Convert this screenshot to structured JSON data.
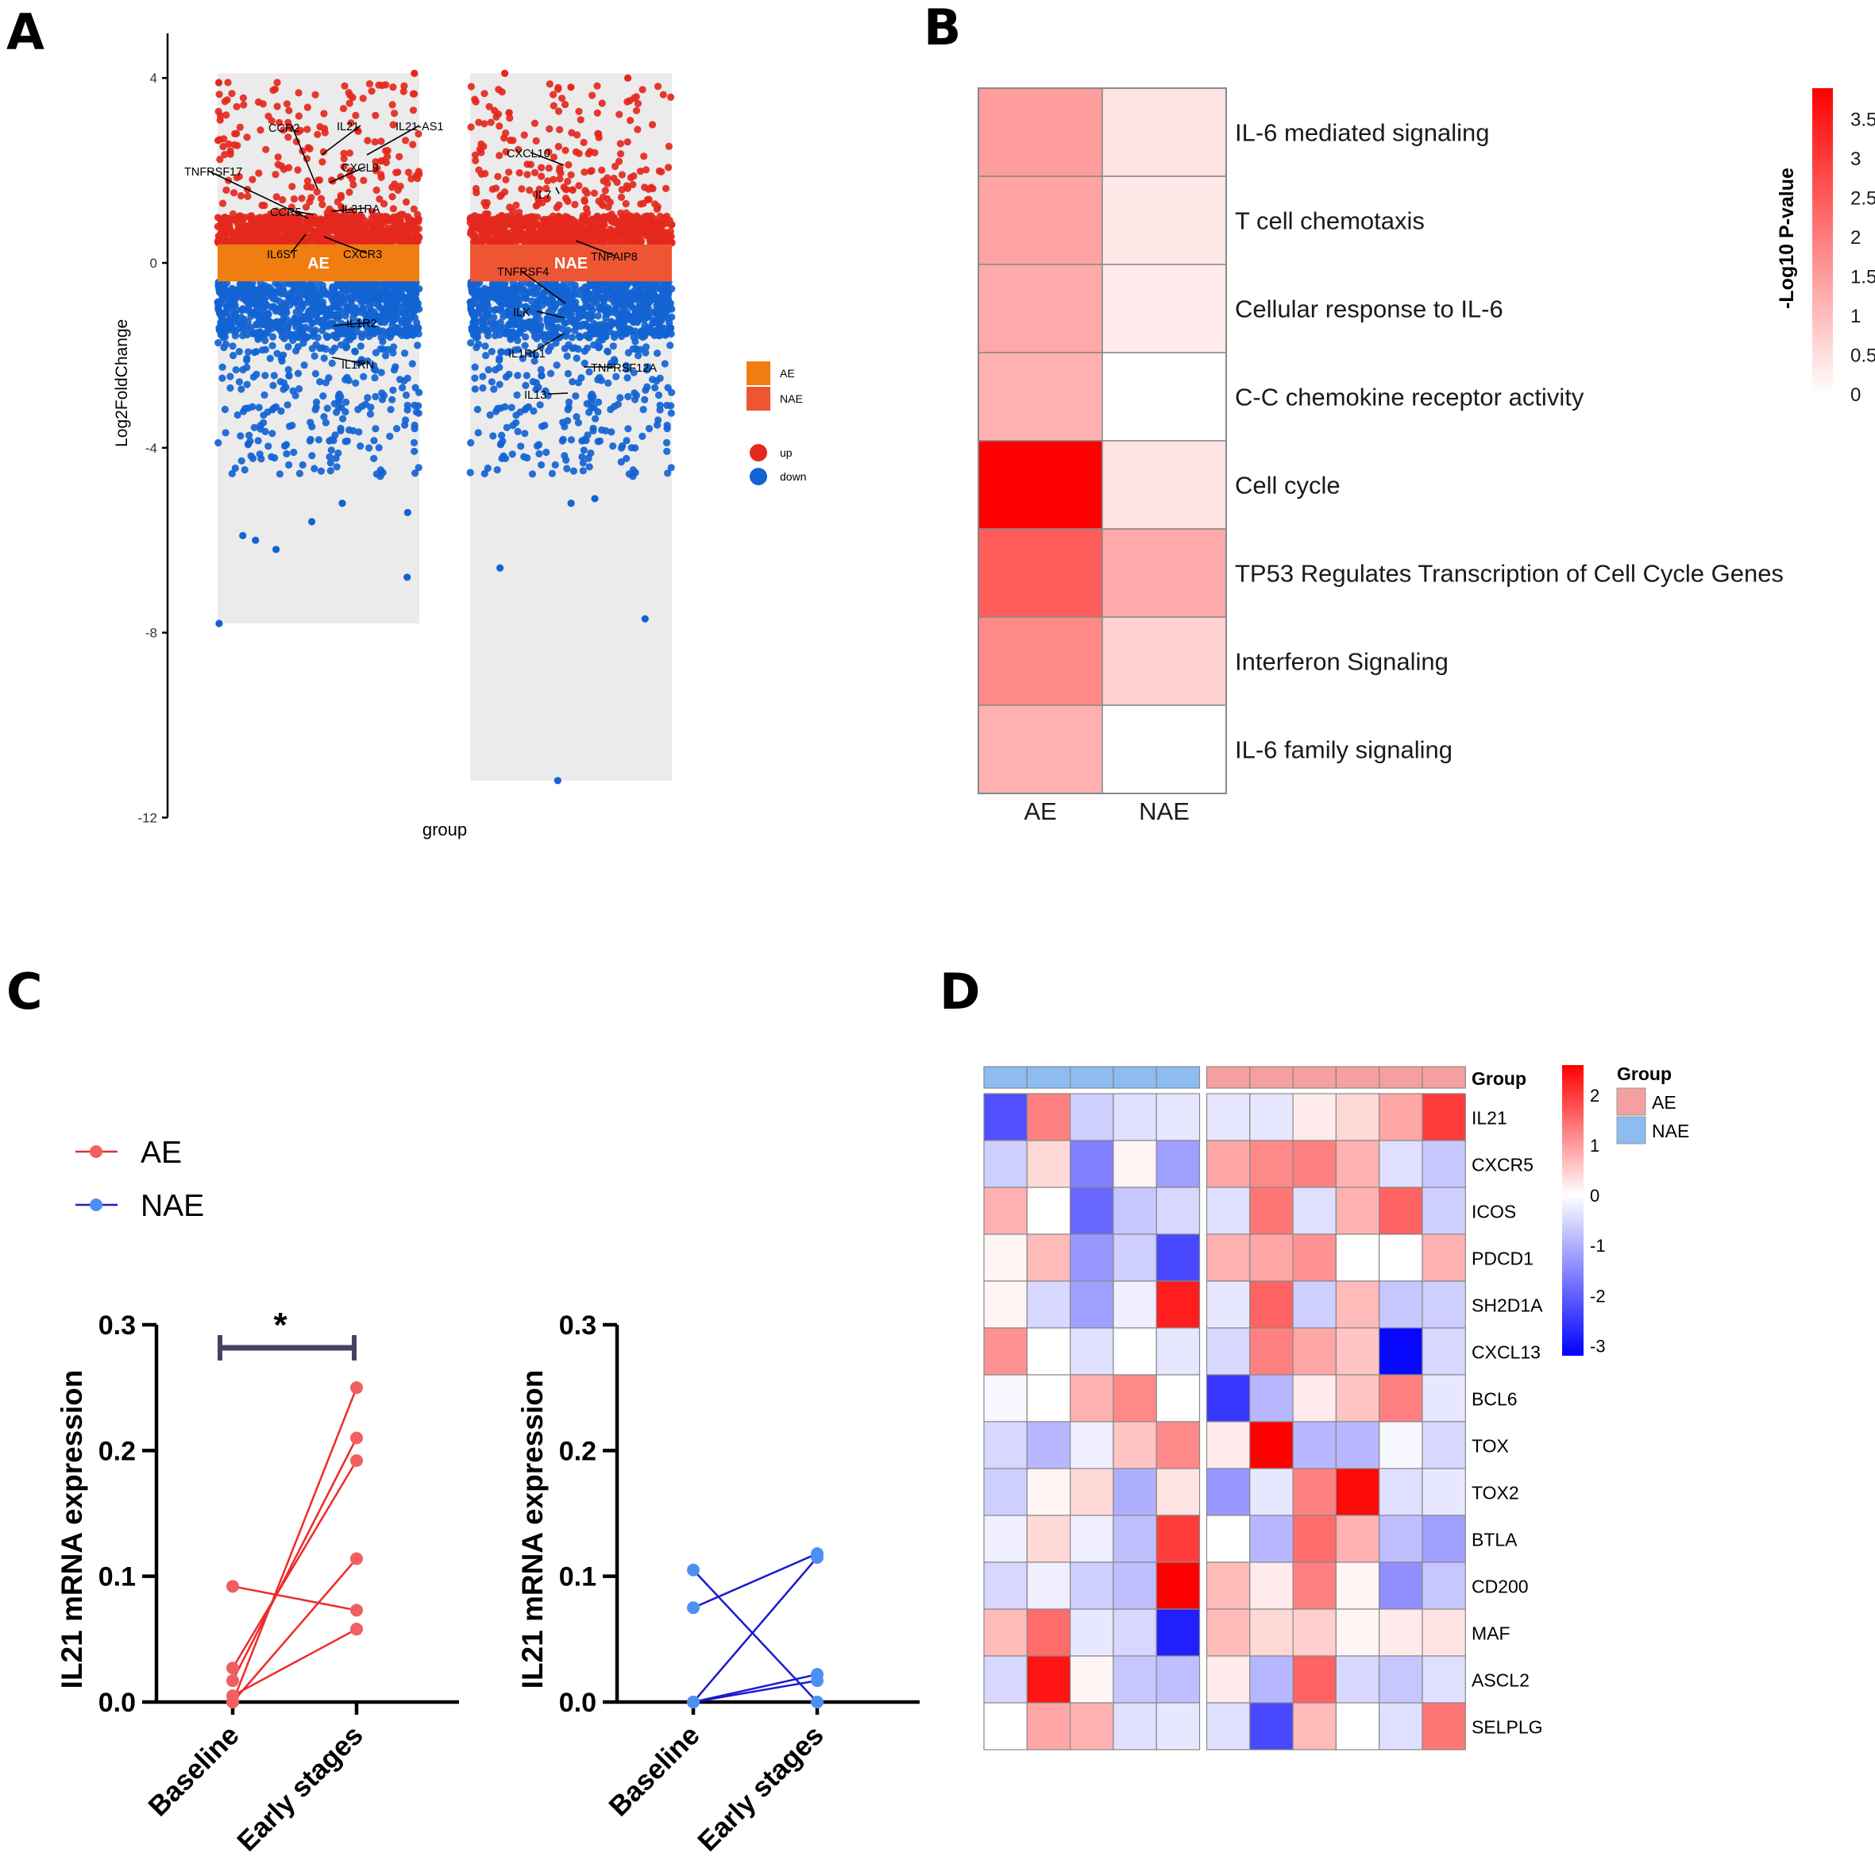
{
  "panels": {
    "a": {
      "letter": "A"
    },
    "b": {
      "letter": "B"
    },
    "c": {
      "letter": "C"
    },
    "d": {
      "letter": "D"
    }
  },
  "colors": {
    "up": "#e4281e",
    "down": "#1263d3",
    "ae_band": "#f07d10",
    "nae_band": "#ee5533",
    "panel_bg": "#ebebeb",
    "ae_line": "#ee2b2b",
    "nae_line": "#1a1ad0",
    "ae_point": "#f06060",
    "nae_point": "#4d90f2",
    "bracket": "#44445e",
    "heat_low": "#ffffff",
    "heat_high": "#ff0000",
    "zlow": "#0000ff",
    "zmid": "#ffffff",
    "zhigh": "#ff0000",
    "group_ae": "#f4a0a0",
    "group_nae": "#8cbcf0"
  },
  "chart_data": [
    {
      "id": "A",
      "type": "scatter",
      "subtype": "manhattan-style jittered volcano",
      "xlabel": "group",
      "ylabel": "Log2FoldChange",
      "ylim": [
        -12,
        4.5
      ],
      "yticks": [
        4,
        0,
        -4,
        -8,
        -12
      ],
      "groups": [
        {
          "name": "AE",
          "band_label": "AE",
          "y_max": 4.1,
          "y_min": -7.8,
          "up_min": 0.4,
          "down_max": -0.4
        },
        {
          "name": "NAE",
          "band_label": "NAE",
          "y_max": 4.1,
          "y_min": -11.2,
          "up_min": 0.4,
          "down_max": -0.4
        }
      ],
      "legend": {
        "group_items": [
          "AE",
          "NAE"
        ],
        "direction_items": [
          "up",
          "down"
        ]
      },
      "gene_labels": [
        {
          "gene": "IL21-AS1",
          "group": "AE",
          "log2fc": 1.5
        },
        {
          "gene": "IL21",
          "group": "AE",
          "log2fc": 2.3
        },
        {
          "gene": "CCR2",
          "group": "AE",
          "log2fc": 1.6
        },
        {
          "gene": "TNFRSF17",
          "group": "AE",
          "log2fc": 1.6
        },
        {
          "gene": "CXCL9",
          "group": "AE",
          "log2fc": 1.8
        },
        {
          "gene": "CCR5",
          "group": "AE",
          "log2fc": 0.9
        },
        {
          "gene": "IL31RA",
          "group": "AE",
          "log2fc": 1.0
        },
        {
          "gene": "IL6ST",
          "group": "AE",
          "log2fc": 0.6
        },
        {
          "gene": "CXCR3",
          "group": "AE",
          "log2fc": 0.5
        },
        {
          "gene": "IL1R2",
          "group": "AE",
          "log2fc": -1.3
        },
        {
          "gene": "IL1RN",
          "group": "AE",
          "log2fc": -2.2
        },
        {
          "gene": "CXCL10",
          "group": "NAE",
          "log2fc": 2.1
        },
        {
          "gene": "IL7",
          "group": "NAE",
          "log2fc": 1.3
        },
        {
          "gene": "TNFAIP8",
          "group": "NAE",
          "log2fc": 0.4
        },
        {
          "gene": "TNFRSF4",
          "group": "NAE",
          "log2fc": -1.0
        },
        {
          "gene": "ILK",
          "group": "NAE",
          "log2fc": -1.3
        },
        {
          "gene": "IL1RL1",
          "group": "NAE",
          "log2fc": -1.6
        },
        {
          "gene": "TNFRSF12A",
          "group": "NAE",
          "log2fc": -2.4
        },
        {
          "gene": "IL13",
          "group": "NAE",
          "log2fc": -2.7
        }
      ]
    },
    {
      "id": "B",
      "type": "heatmap",
      "rows": [
        "IL-6 mediated signaling",
        "T cell chemotaxis",
        "Cellular response to IL-6",
        "C-C chemokine receptor activity",
        "Cell cycle",
        "TP53 Regulates Transcription of Cell Cycle Genes",
        "Interferon Signaling",
        "IL-6 family signaling"
      ],
      "columns": [
        "AE",
        "NAE"
      ],
      "values": [
        [
          1.5,
          0.45
        ],
        [
          1.4,
          0.35
        ],
        [
          1.3,
          0.3
        ],
        [
          1.2,
          0.0
        ],
        [
          3.9,
          0.45
        ],
        [
          2.5,
          1.3
        ],
        [
          1.8,
          0.7
        ],
        [
          1.2,
          0.0
        ]
      ],
      "colorbar": {
        "title": "-Log10 P-value",
        "min": 0,
        "max": 3.9,
        "ticks": [
          "0",
          "0.5",
          "1",
          "1.5",
          "2",
          "2.5",
          "3",
          "3.5"
        ]
      }
    },
    {
      "id": "C1",
      "type": "line",
      "subtype": "paired before-after",
      "group": "AE",
      "categories": [
        "Baseline",
        "Early stages"
      ],
      "ylabel": "IL21 mRNA expression",
      "ylim": [
        0,
        0.3
      ],
      "yticks": [
        "0.0",
        "0.1",
        "0.2",
        "0.3"
      ],
      "pairs": [
        [
          0.0,
          0.25
        ],
        [
          0.017,
          0.21
        ],
        [
          0.027,
          0.192
        ],
        [
          0.0,
          0.114
        ],
        [
          0.092,
          0.073
        ],
        [
          0.005,
          0.058
        ]
      ],
      "significance": "*"
    },
    {
      "id": "C2",
      "type": "line",
      "subtype": "paired before-after",
      "group": "NAE",
      "categories": [
        "Baseline",
        "Early stages"
      ],
      "ylabel": "IL21 mRNA expression",
      "ylim": [
        0,
        0.3
      ],
      "yticks": [
        "0.0",
        "0.1",
        "0.2",
        "0.3"
      ],
      "pairs": [
        [
          0.105,
          0.0
        ],
        [
          0.075,
          0.118
        ],
        [
          0.0,
          0.115
        ],
        [
          0.0,
          0.022
        ],
        [
          0.0,
          0.017
        ]
      ],
      "legend": [
        "AE",
        "NAE"
      ]
    },
    {
      "id": "D",
      "type": "heatmap",
      "annotation_title": "Group",
      "column_groups": [
        "NAE",
        "NAE",
        "NAE",
        "NAE",
        "NAE",
        "AE",
        "AE",
        "AE",
        "AE",
        "AE",
        "AE"
      ],
      "rows": [
        "IL21",
        "CXCR5",
        "ICOS",
        "PDCD1",
        "SH2D1A",
        "CXCL13",
        "BCL6",
        "TOX",
        "TOX2",
        "BTLA",
        "CD200",
        "MAF",
        "ASCL2",
        "SELPLG"
      ],
      "values": [
        [
          -2.2,
          1.3,
          -0.6,
          -0.4,
          -0.3,
          -0.3,
          -0.3,
          0.2,
          0.4,
          0.9,
          2.0
        ],
        [
          -0.6,
          0.4,
          -1.6,
          0.1,
          -1.2,
          0.9,
          1.2,
          1.3,
          0.8,
          -0.4,
          -0.7
        ],
        [
          0.8,
          0.0,
          -1.9,
          -0.7,
          -0.5,
          -0.4,
          1.4,
          -0.4,
          0.8,
          1.6,
          -0.6
        ],
        [
          0.1,
          0.7,
          -1.3,
          -0.6,
          -2.3,
          0.8,
          0.9,
          1.1,
          0.0,
          0.0,
          0.8
        ],
        [
          0.1,
          -0.5,
          -1.2,
          -0.2,
          2.3,
          -0.3,
          1.6,
          -0.6,
          0.7,
          -0.7,
          -0.6
        ],
        [
          1.1,
          0.0,
          -0.4,
          0.0,
          -0.3,
          -0.5,
          1.3,
          0.9,
          0.6,
          -3.1,
          -0.5
        ],
        [
          -0.1,
          0.0,
          0.8,
          1.2,
          0.0,
          -2.5,
          -0.9,
          0.2,
          0.6,
          1.3,
          -0.3
        ],
        [
          -0.5,
          -0.9,
          -0.2,
          0.6,
          1.2,
          0.2,
          2.7,
          -0.9,
          -0.9,
          -0.1,
          -0.5
        ],
        [
          -0.6,
          0.1,
          0.4,
          -1.0,
          0.3,
          -1.3,
          -0.3,
          1.3,
          2.5,
          -0.4,
          -0.3
        ],
        [
          -0.2,
          0.4,
          -0.2,
          -0.8,
          2.0,
          0.0,
          -0.9,
          1.5,
          0.8,
          -0.8,
          -1.2
        ],
        [
          -0.5,
          -0.2,
          -0.6,
          -0.8,
          2.6,
          0.7,
          0.2,
          1.3,
          0.1,
          -1.4,
          -0.7
        ],
        [
          0.7,
          1.5,
          -0.3,
          -0.5,
          -2.8,
          0.7,
          0.4,
          0.5,
          0.1,
          0.2,
          0.3
        ],
        [
          -0.5,
          2.4,
          0.1,
          -0.7,
          -0.8,
          0.2,
          -0.9,
          1.6,
          -0.5,
          -0.7,
          -0.4
        ],
        [
          0.0,
          0.9,
          0.8,
          -0.4,
          -0.3,
          -0.4,
          -2.3,
          0.7,
          0.0,
          -0.4,
          1.4
        ]
      ],
      "colorbar": {
        "min": -3.2,
        "max": 2.6,
        "ticks": [
          "2",
          "1",
          "0",
          "-1",
          "-2",
          "-3"
        ]
      },
      "legend": {
        "title": "Group",
        "items": [
          "AE",
          "NAE"
        ]
      }
    }
  ]
}
